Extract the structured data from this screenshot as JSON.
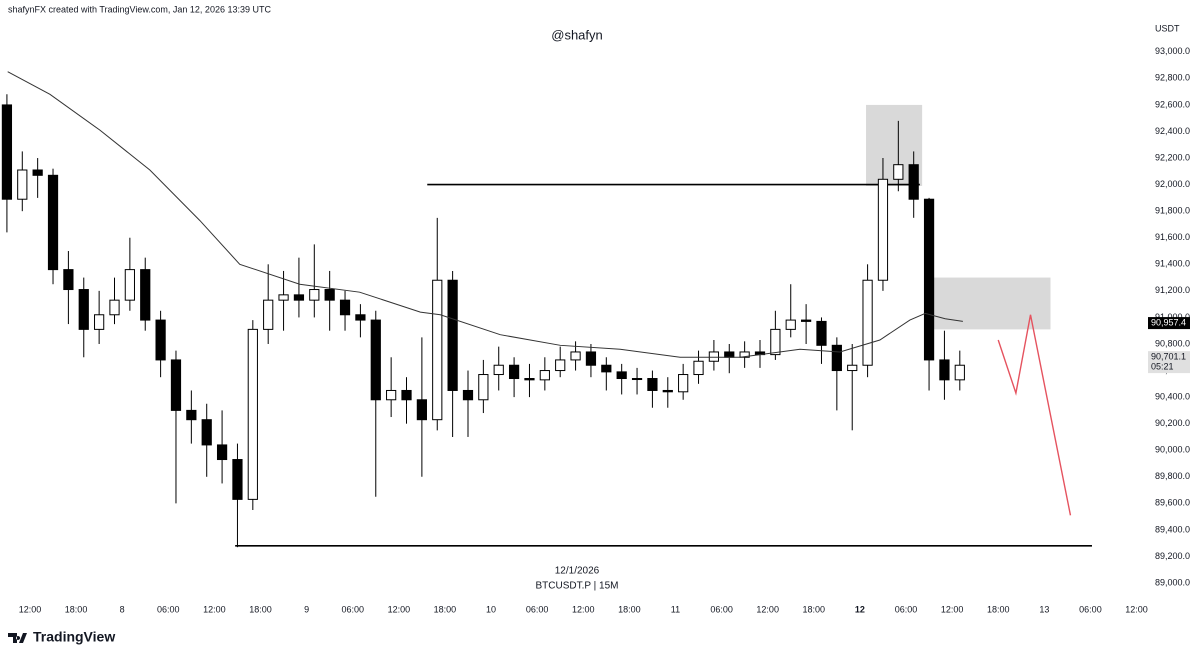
{
  "chart_data": {
    "type": "candlestick",
    "header": "shafynFX created with TradingView.com, Jan 12, 2026 13:39 UTC",
    "title": "@shafyn",
    "currency": "USDT",
    "date_label": "12/1/2026",
    "symbol": "BTCUSDT.P | 15M",
    "brand": "TradingView",
    "xlim": [
      -3.9,
      145.1
    ],
    "xticks": [
      {
        "value": 0,
        "label": "12:00"
      },
      {
        "value": 6,
        "label": "18:00"
      },
      {
        "value": 12,
        "label": "8"
      },
      {
        "value": 18,
        "label": "06:00"
      },
      {
        "value": 24,
        "label": "12:00"
      },
      {
        "value": 30,
        "label": "18:00"
      },
      {
        "value": 36,
        "label": "9"
      },
      {
        "value": 42,
        "label": "06:00"
      },
      {
        "value": 48,
        "label": "12:00"
      },
      {
        "value": 54,
        "label": "18:00"
      },
      {
        "value": 60,
        "label": "10"
      },
      {
        "value": 66,
        "label": "06:00"
      },
      {
        "value": 72,
        "label": "12:00"
      },
      {
        "value": 78,
        "label": "18:00"
      },
      {
        "value": 84,
        "label": "11"
      },
      {
        "value": 90,
        "label": "06:00"
      },
      {
        "value": 96,
        "label": "12:00"
      },
      {
        "value": 102,
        "label": "18:00"
      },
      {
        "value": 108,
        "label": "12",
        "bold": true
      },
      {
        "value": 114,
        "label": "06:00"
      },
      {
        "value": 120,
        "label": "12:00"
      },
      {
        "value": 126,
        "label": "18:00"
      },
      {
        "value": 132,
        "label": "13"
      },
      {
        "value": 138,
        "label": "06:00"
      },
      {
        "value": 144,
        "label": "12:00"
      }
    ],
    "ylim": [
      88910,
      93390
    ],
    "yticks": [
      {
        "value": 89000,
        "label": "89,000.0"
      },
      {
        "value": 89200,
        "label": "89,200.0"
      },
      {
        "value": 89400,
        "label": "89,400.0"
      },
      {
        "value": 89600,
        "label": "89,600.0"
      },
      {
        "value": 89800,
        "label": "89,800.0"
      },
      {
        "value": 90000,
        "label": "90,000.0"
      },
      {
        "value": 90200,
        "label": "90,200.0"
      },
      {
        "value": 90400,
        "label": "90,400.0"
      },
      {
        "value": 90600,
        "label": "90,600.0"
      },
      {
        "value": 90800,
        "label": "90,800.0"
      },
      {
        "value": 91000,
        "label": "91,000.0"
      },
      {
        "value": 91200,
        "label": "91,200.0"
      },
      {
        "value": 91400,
        "label": "91,400.0"
      },
      {
        "value": 91600,
        "label": "91,600.0"
      },
      {
        "value": 91800,
        "label": "91,800.0"
      },
      {
        "value": 92000,
        "label": "92,000.0"
      },
      {
        "value": 92200,
        "label": "92,200.0"
      },
      {
        "value": 92400,
        "label": "92,400.0"
      },
      {
        "value": 92600,
        "label": "92,600.0"
      },
      {
        "value": 92800,
        "label": "92,800.0"
      },
      {
        "value": 93000,
        "label": "93,000.0"
      }
    ],
    "grid": false,
    "up_color": "#ffffff",
    "down_color": "#000000",
    "x": [
      -3,
      -1,
      1,
      3,
      5,
      7,
      9,
      11,
      13,
      15,
      17,
      19,
      21,
      23,
      25,
      27,
      29,
      31,
      33,
      35,
      37,
      39,
      41,
      43,
      45,
      47,
      49,
      51,
      53,
      55,
      57,
      59,
      61,
      63,
      65,
      67,
      69,
      71,
      73,
      75,
      77,
      79,
      81,
      83,
      85,
      87,
      89,
      91,
      93,
      95,
      97,
      99,
      101,
      103,
      105,
      107,
      109,
      111,
      113,
      115,
      117,
      119,
      121
    ],
    "open": [
      92600,
      91890,
      92110,
      92070,
      91360,
      91210,
      90910,
      91020,
      91130,
      91360,
      90980,
      90680,
      90300,
      90230,
      90040,
      89930,
      89630,
      90910,
      91130,
      91170,
      91130,
      91210,
      91130,
      91020,
      90980,
      90380,
      90450,
      90380,
      90230,
      91280,
      90450,
      90380,
      90570,
      90640,
      90540,
      90530,
      90600,
      90680,
      90740,
      90640,
      90590,
      90540,
      90540,
      90450,
      90440,
      90570,
      90670,
      90740,
      90700,
      90740,
      90720,
      90910,
      90980,
      90970,
      90790,
      90600,
      90640,
      91280,
      92040,
      92150,
      91890,
      90680,
      90530
    ],
    "high": [
      92680,
      92250,
      92200,
      92120,
      91500,
      91300,
      91200,
      91300,
      91600,
      91450,
      91050,
      90750,
      90450,
      90350,
      90300,
      90050,
      90980,
      91400,
      91350,
      91450,
      91550,
      91350,
      91200,
      91100,
      91050,
      90700,
      90550,
      90850,
      91750,
      91350,
      90600,
      90680,
      90780,
      90700,
      90650,
      90700,
      90780,
      90820,
      90800,
      90700,
      90650,
      90620,
      90600,
      90550,
      90650,
      90750,
      90830,
      90800,
      90820,
      90830,
      91050,
      91250,
      91100,
      91000,
      90850,
      90800,
      91400,
      92200,
      92480,
      92250,
      91900,
      90900,
      90750
    ],
    "low": [
      91640,
      91800,
      91900,
      91250,
      90950,
      90700,
      90800,
      90950,
      91050,
      90900,
      90550,
      89600,
      90050,
      89800,
      89750,
      89270,
      89550,
      90800,
      90900,
      91000,
      91000,
      90900,
      90900,
      90850,
      89650,
      90250,
      90200,
      89800,
      90150,
      90100,
      90100,
      90280,
      90450,
      90400,
      90400,
      90450,
      90550,
      90600,
      90550,
      90450,
      90420,
      90420,
      90320,
      90320,
      90380,
      90500,
      90600,
      90580,
      90620,
      90620,
      90680,
      90850,
      90800,
      90650,
      90300,
      90150,
      90550,
      91200,
      91950,
      91750,
      90450,
      90380,
      90450
    ],
    "close": [
      91890,
      92110,
      92070,
      91360,
      91210,
      90910,
      91020,
      91130,
      91360,
      90980,
      90680,
      90300,
      90230,
      90040,
      89930,
      89630,
      90910,
      91130,
      91170,
      91130,
      91210,
      91130,
      91020,
      90980,
      90380,
      90450,
      90380,
      90230,
      91280,
      90450,
      90380,
      90570,
      90640,
      90540,
      90530,
      90600,
      90680,
      90740,
      90640,
      90590,
      90540,
      90540,
      90450,
      90440,
      90570,
      90670,
      90740,
      90700,
      90740,
      90720,
      90910,
      90980,
      90970,
      90790,
      90600,
      90640,
      91280,
      92040,
      92150,
      91890,
      90680,
      90530,
      90640
    ],
    "moving_average": {
      "color": "#333333",
      "x": [
        -2.9,
        2.6,
        9.1,
        15.6,
        22.1,
        27.3,
        35.1,
        42.9,
        50.8,
        53.4,
        61.2,
        69.0,
        76.8,
        84.6,
        92.4,
        100.2,
        105.4,
        110.6,
        114.5,
        116.5,
        119.1,
        121.4
      ],
      "values": [
        92850,
        92680,
        92410,
        92110,
        91730,
        91400,
        91250,
        91190,
        91040,
        91020,
        90870,
        90790,
        90760,
        90700,
        90700,
        90760,
        90740,
        90830,
        90980,
        91030,
        90990,
        90970
      ]
    },
    "levels": [
      {
        "value": 92000,
        "x": [
          51.7,
          115.8
        ]
      },
      {
        "value": 89280,
        "x": [
          26.7,
          138.2
        ]
      }
    ],
    "zones": [
      {
        "x": [
          108.8,
          116.1
        ],
        "y": [
          91990,
          92600
        ]
      },
      {
        "x": [
          116.6,
          132.8
        ],
        "y": [
          90910,
          91300
        ]
      }
    ],
    "zone_color": "#d9d9d9",
    "projection": {
      "color": "#e5535f",
      "x": [
        126,
        128.3,
        130.2,
        135.4
      ],
      "values": [
        90830,
        90430,
        91020,
        89510
      ]
    },
    "price_tags": [
      {
        "value": 90957.4,
        "label": "90,957.4",
        "color": "#000000"
      },
      {
        "value": 90701.1,
        "label": "90,701.1",
        "countdown": "05:21",
        "color": "#e0e0e0"
      }
    ]
  }
}
